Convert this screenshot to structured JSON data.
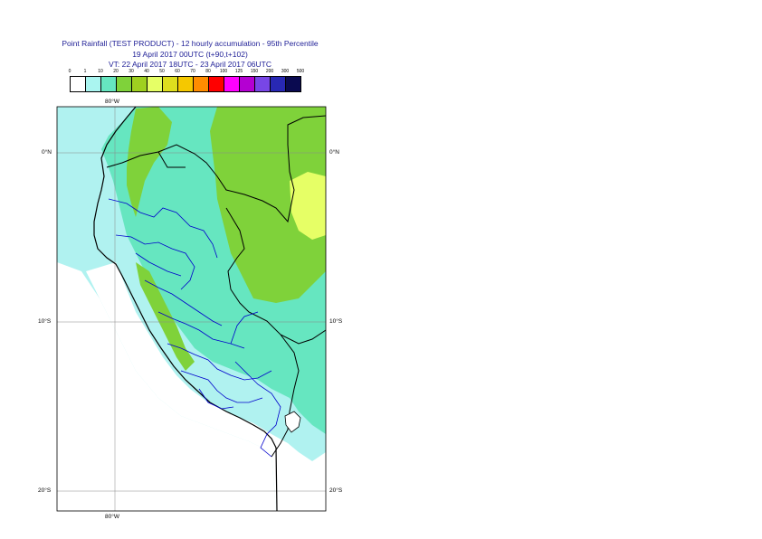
{
  "header": {
    "line1": "Point Rainfall (TEST PRODUCT) - 12 hourly accumulation - 95th Percentile",
    "line2": "19 April 2017 00UTC (t+90,t+102)",
    "line3": "VT: 22 April 2017 18UTC - 23 April 2017 06UTC"
  },
  "legend": {
    "labels": [
      "0",
      "1",
      "10",
      "20",
      "30",
      "40",
      "50",
      "60",
      "70",
      "80",
      "100",
      "125",
      "150",
      "200",
      "300",
      "500"
    ],
    "colors": [
      "#ffffff",
      "#aaf5f0",
      "#66e6c0",
      "#7fd23a",
      "#9fd020",
      "#e6ff66",
      "#dede1e",
      "#f5c800",
      "#ff8c00",
      "#ff0000",
      "#ff00ff",
      "#b400d2",
      "#7846e6",
      "#2828b4",
      "#0a0a50"
    ]
  },
  "map": {
    "lat_labels": {
      "north": "0°N",
      "lat10": "10°S",
      "lat20": "20°S"
    },
    "lon_label": "80°W",
    "colors": {
      "ocean": "#b0f2f0",
      "land_low": "#66e6c0",
      "land_mid": "#7fd23a",
      "land_high": "#9fd020",
      "land_yellow": "#e6ff66",
      "dry": "#ffffff",
      "coast": "#000000",
      "borders": "#000000",
      "regions": "#0000cc"
    }
  }
}
